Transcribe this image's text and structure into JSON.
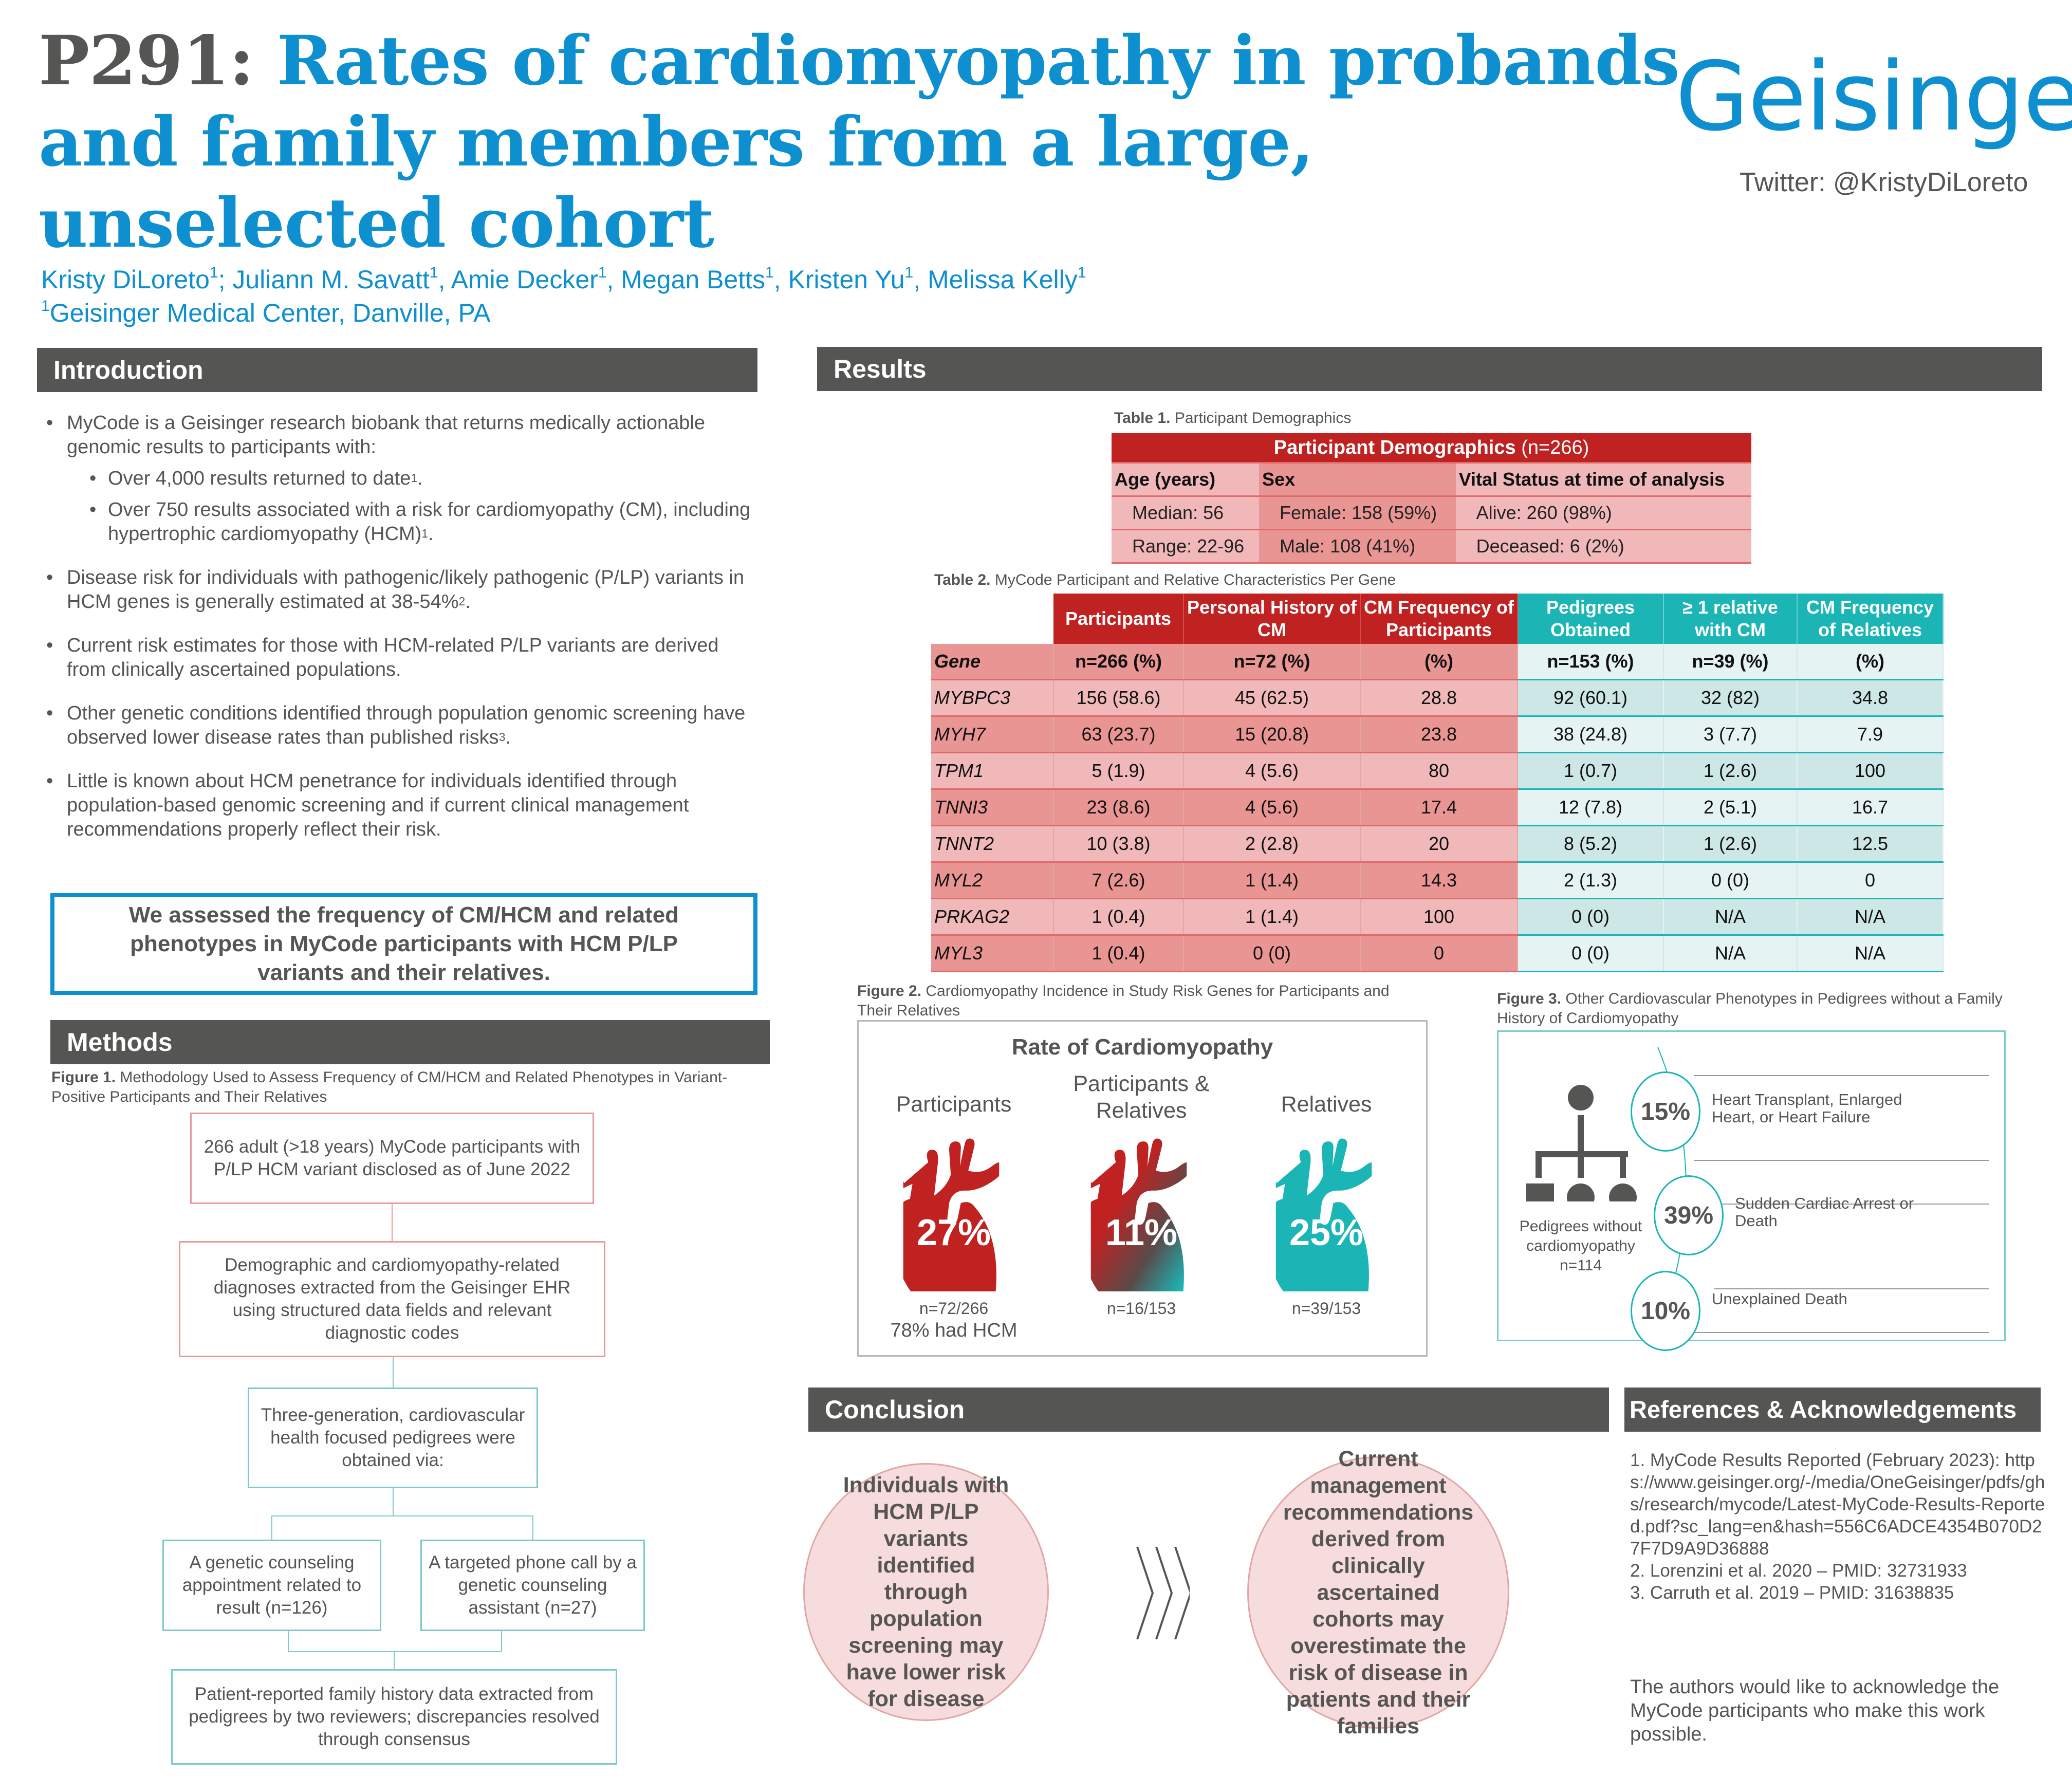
{
  "header": {
    "poster_number": "P291:",
    "title": "Rates of cardiomyopathy in probands and family members from a large, unselected cohort",
    "title_lines": [
      "Rates of cardiomyopathy in probands",
      "and family members from a large,",
      "unselected cohort"
    ],
    "authors": [
      {
        "name": "Kristy DiLoreto",
        "sup": "1",
        "sep": "; "
      },
      {
        "name": "Juliann M. Savatt",
        "sup": "1",
        "sep": ", "
      },
      {
        "name": "Amie Decker",
        "sup": "1",
        "sep": ", "
      },
      {
        "name": "Megan Betts",
        "sup": "1",
        "sep": ", "
      },
      {
        "name": "Kristen Yu",
        "sup": "1",
        "sep": ", "
      },
      {
        "name": "Melissa Kelly",
        "sup": "1",
        "sep": ""
      }
    ],
    "affiliation_sup": "1",
    "affiliation": "Geisinger Medical Center, Danville, PA",
    "logo": "Geisinger",
    "twitter": "Twitter: @KristyDiLoreto"
  },
  "colors": {
    "brand_blue": "#0e8fcf",
    "section_gray": "#555653",
    "participant_red": "#c02222",
    "relative_teal": "#1bb5b6",
    "conclusion_pink": "#f6dcdc"
  },
  "introduction": {
    "heading": "Introduction",
    "bullets": [
      {
        "text": "MyCode is a Geisinger research biobank that returns medically actionable genomic results to participants with:",
        "sub": [
          {
            "text": "Over 4,000 results returned to date",
            "sup": "1",
            "tail": "."
          },
          {
            "text": "Over 750 results associated with a risk for cardiomyopathy (CM), including hypertrophic cardiomyopathy (HCM)",
            "sup": "1",
            "tail": "."
          }
        ]
      },
      {
        "text": "Disease risk for individuals with pathogenic/likely pathogenic  (P/LP) variants in HCM genes is generally estimated at 38-54%",
        "sup": "2",
        "tail": "."
      },
      {
        "text": "Current risk estimates for those with HCM-related P/LP variants are derived from clinically ascertained populations.",
        "sup": "",
        "tail": ""
      },
      {
        "text": "Other genetic conditions identified through population genomic screening have observed lower disease rates than published risks",
        "sup": "3",
        "tail": "."
      },
      {
        "text": "Little is known about HCM penetrance for individuals identified through population-based genomic screening and if current clinical management recommendations properly reflect their risk.",
        "sup": "",
        "tail": ""
      }
    ],
    "aim": "We assessed the frequency of CM/HCM and related phenotypes in MyCode participants with HCM P/LP variants and their relatives."
  },
  "methods": {
    "heading": "Methods",
    "figure_label": "Figure 1.",
    "figure_caption": "Methodology Used to Assess Frequency of CM/HCM and Related Phenotypes in Variant-Positive Participants and Their Relatives",
    "flow": {
      "step1": "266 adult (>18 years) MyCode participants with P/LP HCM variant disclosed as of June 2022",
      "step2": "Demographic and cardiomyopathy-related diagnoses extracted from the Geisinger EHR using structured data fields and relevant diagnostic codes",
      "step3": "Three-generation, cardiovascular health focused pedigrees were obtained via:",
      "step4a": "A genetic counseling appointment related to result (n=126)",
      "step4b": "A targeted phone call by a genetic counseling assistant (n=27)",
      "step5": "Patient-reported family history data extracted from pedigrees by two reviewers; discrepancies resolved through consensus"
    }
  },
  "results": {
    "heading": "Results",
    "table1": {
      "label": "Table 1.",
      "caption": "Participant Demographics",
      "title": "Participant Demographics",
      "title_n": "(n=266)",
      "columns": [
        "Age (years)",
        "Sex",
        "Vital Status at time of analysis"
      ],
      "rows": [
        [
          "Median: 56",
          "Female: 158 (59%)",
          "Alive: 260 (98%)"
        ],
        [
          "Range: 22-96",
          "Male: 108 (41%)",
          "Deceased: 6 (2%)"
        ]
      ]
    },
    "table2": {
      "label": "Table 2.",
      "caption": "MyCode Participant and Relative Characteristics Per Gene",
      "group_headers": [
        "Participants",
        "Personal History of CM",
        "CM Frequency of Participants",
        "Pedigrees Obtained",
        "≥ 1 relative with CM",
        "CM Frequency of Relatives"
      ],
      "sub_headers": [
        "Gene",
        "n=266 (%)",
        "n=72 (%)",
        "(%)",
        "n=153 (%)",
        "n=39 (%)",
        "(%)"
      ],
      "rows": [
        [
          "MYBPC3",
          "156 (58.6)",
          "45 (62.5)",
          "28.8",
          "92 (60.1)",
          "32 (82)",
          "34.8"
        ],
        [
          "MYH7",
          "63 (23.7)",
          "15 (20.8)",
          "23.8",
          "38 (24.8)",
          "3 (7.7)",
          "7.9"
        ],
        [
          "TPM1",
          "5 (1.9)",
          "4 (5.6)",
          "80",
          "1 (0.7)",
          "1 (2.6)",
          "100"
        ],
        [
          "TNNI3",
          "23 (8.6)",
          "4 (5.6)",
          "17.4",
          "12 (7.8)",
          "2 (5.1)",
          "16.7"
        ],
        [
          "TNNT2",
          "10 (3.8)",
          "2 (2.8)",
          "20",
          "8 (5.2)",
          "1 (2.6)",
          "12.5"
        ],
        [
          "MYL2",
          "7 (2.6)",
          "1 (1.4)",
          "14.3",
          "2 (1.3)",
          "0 (0)",
          "0"
        ],
        [
          "PRKAG2",
          "1 (0.4)",
          "1 (1.4)",
          "100",
          "0 (0)",
          "N/A",
          "N/A"
        ],
        [
          "MYL3",
          "1 (0.4)",
          "0 (0)",
          "0",
          "0 (0)",
          "N/A",
          "N/A"
        ]
      ]
    },
    "figure2": {
      "label": "Figure 2.",
      "caption": "Cardiomyopathy Incidence in Study Risk Genes for Participants and Their Relatives",
      "title": "Rate of Cardiomyopathy",
      "hearts": [
        {
          "label": "Participants",
          "value": "27%",
          "n": "n=72/266",
          "note": "78% had HCM",
          "style": "red"
        },
        {
          "label": "Participants & Relatives",
          "value": "11%",
          "n": "n=16/153",
          "note": "",
          "style": "gradient"
        },
        {
          "label": "Relatives",
          "value": "25%",
          "n": "n=39/153",
          "note": "",
          "style": "teal"
        }
      ]
    },
    "figure3": {
      "label": "Figure 3.",
      "caption": "Other Cardiovascular Phenotypes in Pedigrees without a Family History of Cardiomyopathy",
      "pedigree_label": [
        "Pedigrees without",
        "cardiomyopathy",
        "n=114"
      ],
      "items": [
        {
          "value": "15%",
          "text": "Heart Transplant, Enlarged Heart, or Heart Failure"
        },
        {
          "value": "39%",
          "text": "Sudden Cardiac Arrest or Death"
        },
        {
          "value": "10%",
          "text": "Unexplained Death"
        }
      ]
    }
  },
  "conclusion": {
    "heading": "Conclusion",
    "left": "Individuals with HCM P/LP variants identified through population screening may have lower risk for disease",
    "right": "Current management recommendations derived from clinically ascertained cohorts may overestimate the risk of disease in patients and their families"
  },
  "references": {
    "heading": "References & Acknowledgements",
    "items": [
      "1. MyCode Results Reported (February 2023): https://www.geisinger.org/-/media/OneGeisinger/pdfs/ghs/research/mycode/Latest-MyCode-Results-Reported.pdf?sc_lang=en&hash=556C6ADCE4354B070D27F7D9A9D36888",
      "2. Lorenzini et al. 2020 – PMID: 32731933",
      "3. Carruth et al. 2019 – PMID: 31638835"
    ],
    "acknowledgement": "The authors would like to acknowledge the MyCode participants who make this work possible."
  }
}
